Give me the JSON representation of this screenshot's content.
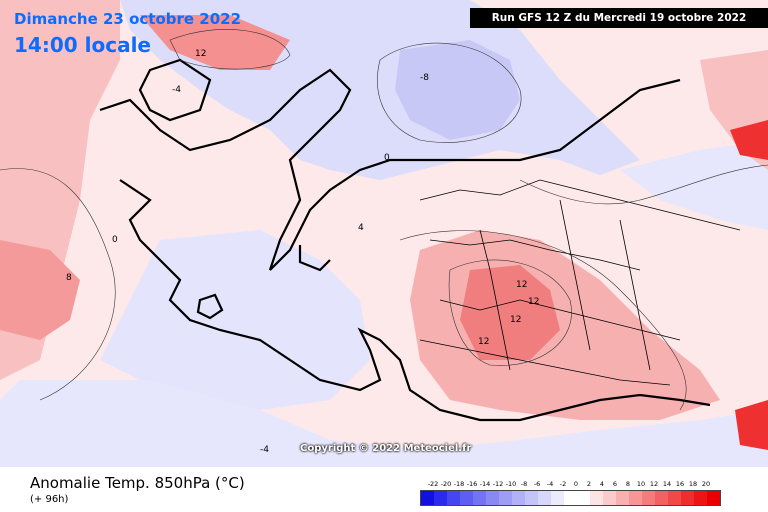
{
  "map": {
    "date_label": "Dimanche 23 octobre 2022",
    "time_label": "14:00 locale",
    "run_label": "Run GFS 12 Z du Mercredi 19 octobre 2022",
    "copyright": "Copyright © 2022 Meteociel.fr",
    "variable_title": "Anomalie Temp. 850hPa (°C)",
    "lead_time": "(+ 96h)",
    "contour_labels": [
      "12",
      "-4",
      "0",
      "4",
      "-8",
      "8",
      "12",
      "12",
      "12",
      "12",
      "-4",
      "0"
    ]
  },
  "legend": {
    "ticks": [
      "-22",
      "-20",
      "-18",
      "-16",
      "-14",
      "-12",
      "-10",
      "-8",
      "-6",
      "-4",
      "-2",
      "0",
      "2",
      "4",
      "6",
      "8",
      "10",
      "12",
      "14",
      "16",
      "18",
      "20"
    ],
    "colors": [
      "#1010e0",
      "#2a2aee",
      "#4646f0",
      "#5e5ef2",
      "#7373f3",
      "#8989f4",
      "#9d9df6",
      "#b1b1f7",
      "#c4c4f9",
      "#d7d7fb",
      "#ebebfd",
      "#ffffff",
      "#ffffff",
      "#fde4e4",
      "#fbcaca",
      "#f9b0b0",
      "#f79696",
      "#f57c7c",
      "#f36262",
      "#f14848",
      "#ee2e2e",
      "#ec1414",
      "#e80000"
    ]
  }
}
